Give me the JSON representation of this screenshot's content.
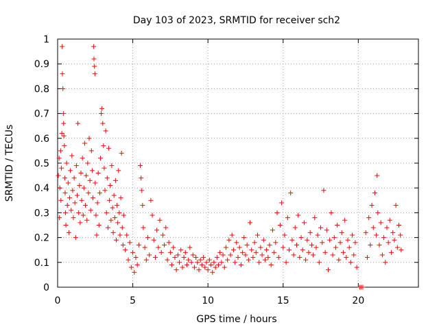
{
  "chart_data": {
    "type": "scatter",
    "title": "Day 103 of 2023, SRMTID for receiver sch2",
    "xlabel": "GPS time / hours",
    "ylabel": "SRMTID / TECUs",
    "xlim": [
      0,
      24
    ],
    "ylim": [
      0,
      1
    ],
    "xticks": [
      0,
      5,
      10,
      15,
      20
    ],
    "xtick_labels": [
      "0",
      "5",
      "10",
      "15",
      "20"
    ],
    "yticks": [
      0,
      0.1,
      0.2,
      0.3,
      0.4,
      0.5,
      0.6,
      0.7,
      0.8,
      0.9,
      1
    ],
    "ytick_labels": [
      "0",
      "0.1",
      "0.2",
      "0.3",
      "0.4",
      "0.5",
      "0.6",
      "0.7",
      "0.8",
      "0.9",
      "1"
    ],
    "grid": true,
    "marker": "+",
    "color": "#ff0000",
    "series": [
      {
        "name": "sch2",
        "points": [
          [
            0.05,
            0.45
          ],
          [
            0.1,
            0.52
          ],
          [
            0.12,
            0.28
          ],
          [
            0.15,
            0.4
          ],
          [
            0.2,
            0.55
          ],
          [
            0.22,
            0.35
          ],
          [
            0.25,
            0.48
          ],
          [
            0.28,
            0.62
          ],
          [
            0.3,
            0.97
          ],
          [
            0.32,
            0.86
          ],
          [
            0.35,
            0.8
          ],
          [
            0.38,
            0.7
          ],
          [
            0.4,
            0.66
          ],
          [
            0.42,
            0.61
          ],
          [
            0.45,
            0.57
          ],
          [
            0.48,
            0.44
          ],
          [
            0.5,
            0.38
          ],
          [
            0.52,
            0.3
          ],
          [
            0.55,
            0.25
          ],
          [
            0.6,
            0.5
          ],
          [
            0.65,
            0.33
          ],
          [
            0.7,
            0.42
          ],
          [
            0.75,
            0.22
          ],
          [
            0.8,
            0.36
          ],
          [
            0.85,
            0.47
          ],
          [
            0.9,
            0.31
          ],
          [
            0.95,
            0.53
          ],
          [
            1.0,
            0.39
          ],
          [
            1.05,
            0.28
          ],
          [
            1.1,
            0.44
          ],
          [
            1.15,
            0.34
          ],
          [
            1.2,
            0.2
          ],
          [
            1.25,
            0.49
          ],
          [
            1.3,
            0.37
          ],
          [
            1.35,
            0.66
          ],
          [
            1.4,
            0.3
          ],
          [
            1.45,
            0.41
          ],
          [
            1.5,
            0.26
          ],
          [
            1.55,
            0.46
          ],
          [
            1.6,
            0.35
          ],
          [
            1.65,
            0.52
          ],
          [
            1.7,
            0.29
          ],
          [
            1.75,
            0.4
          ],
          [
            1.8,
            0.58
          ],
          [
            1.85,
            0.33
          ],
          [
            1.9,
            0.45
          ],
          [
            1.95,
            0.27
          ],
          [
            2.0,
            0.5
          ],
          [
            2.05,
            0.38
          ],
          [
            2.1,
            0.6
          ],
          [
            2.15,
            0.43
          ],
          [
            2.2,
            0.31
          ],
          [
            2.25,
            0.55
          ],
          [
            2.3,
            0.47
          ],
          [
            2.35,
            0.36
          ],
          [
            2.4,
            0.97
          ],
          [
            2.42,
            0.92
          ],
          [
            2.45,
            0.89
          ],
          [
            2.48,
            0.86
          ],
          [
            2.5,
            0.42
          ],
          [
            2.55,
            0.29
          ],
          [
            2.6,
            0.21
          ],
          [
            2.65,
            0.34
          ],
          [
            2.7,
            0.46
          ],
          [
            2.75,
            0.25
          ],
          [
            2.8,
            0.38
          ],
          [
            2.85,
            0.52
          ],
          [
            2.9,
            0.7
          ],
          [
            2.95,
            0.72
          ],
          [
            3.0,
            0.66
          ],
          [
            3.05,
            0.57
          ],
          [
            3.1,
            0.48
          ],
          [
            3.15,
            0.39
          ],
          [
            3.2,
            0.63
          ],
          [
            3.25,
            0.3
          ],
          [
            3.3,
            0.44
          ],
          [
            3.35,
            0.24
          ],
          [
            3.4,
            0.56
          ],
          [
            3.45,
            0.35
          ],
          [
            3.5,
            0.41
          ],
          [
            3.55,
            0.27
          ],
          [
            3.6,
            0.49
          ],
          [
            3.65,
            0.32
          ],
          [
            3.7,
            0.22
          ],
          [
            3.75,
            0.37
          ],
          [
            3.8,
            0.28
          ],
          [
            3.85,
            0.43
          ],
          [
            3.9,
            0.19
          ],
          [
            3.95,
            0.33
          ],
          [
            4.0,
            0.26
          ],
          [
            4.05,
            0.47
          ],
          [
            4.1,
            0.3
          ],
          [
            4.15,
            0.21
          ],
          [
            4.2,
            0.36
          ],
          [
            4.25,
            0.54
          ],
          [
            4.3,
            0.24
          ],
          [
            4.35,
            0.17
          ],
          [
            4.4,
            0.29
          ],
          [
            4.5,
            0.15
          ],
          [
            4.6,
            0.21
          ],
          [
            4.7,
            0.11
          ],
          [
            4.8,
            0.18
          ],
          [
            4.9,
            0.08
          ],
          [
            5.0,
            0.14
          ],
          [
            5.1,
            0.06
          ],
          [
            5.2,
            0.12
          ],
          [
            5.3,
            0.09
          ],
          [
            5.4,
            0.17
          ],
          [
            5.5,
            0.49
          ],
          [
            5.55,
            0.44
          ],
          [
            5.6,
            0.39
          ],
          [
            5.65,
            0.33
          ],
          [
            5.7,
            0.24
          ],
          [
            5.8,
            0.16
          ],
          [
            5.9,
            0.11
          ],
          [
            6.0,
            0.2
          ],
          [
            6.1,
            0.13
          ],
          [
            6.2,
            0.35
          ],
          [
            6.3,
            0.29
          ],
          [
            6.4,
            0.19
          ],
          [
            6.5,
            0.12
          ],
          [
            6.6,
            0.23
          ],
          [
            6.7,
            0.16
          ],
          [
            6.8,
            0.27
          ],
          [
            6.9,
            0.14
          ],
          [
            7.0,
            0.21
          ],
          [
            7.1,
            0.17
          ],
          [
            7.2,
            0.24
          ],
          [
            7.3,
            0.11
          ],
          [
            7.4,
            0.18
          ],
          [
            7.5,
            0.14
          ],
          [
            7.6,
            0.09
          ],
          [
            7.7,
            0.16
          ],
          [
            7.8,
            0.12
          ],
          [
            7.9,
            0.07
          ],
          [
            8.0,
            0.13
          ],
          [
            8.1,
            0.1
          ],
          [
            8.2,
            0.15
          ],
          [
            8.3,
            0.08
          ],
          [
            8.4,
            0.12
          ],
          [
            8.5,
            0.14
          ],
          [
            8.6,
            0.09
          ],
          [
            8.7,
            0.11
          ],
          [
            8.8,
            0.16
          ],
          [
            8.9,
            0.1
          ],
          [
            9.0,
            0.13
          ],
          [
            9.1,
            0.08
          ],
          [
            9.2,
            0.12
          ],
          [
            9.3,
            0.1
          ],
          [
            9.4,
            0.07
          ],
          [
            9.5,
            0.11
          ],
          [
            9.6,
            0.09
          ],
          [
            9.7,
            0.12
          ],
          [
            9.8,
            0.08
          ],
          [
            9.9,
            0.1
          ],
          [
            10.0,
            0.07
          ],
          [
            10.1,
            0.11
          ],
          [
            10.2,
            0.09
          ],
          [
            10.3,
            0.06
          ],
          [
            10.4,
            0.1
          ],
          [
            10.5,
            0.08
          ],
          [
            10.6,
            0.12
          ],
          [
            10.7,
            0.09
          ],
          [
            10.8,
            0.14
          ],
          [
            10.9,
            0.1
          ],
          [
            11.0,
            0.13
          ],
          [
            11.1,
            0.08
          ],
          [
            11.2,
            0.16
          ],
          [
            11.3,
            0.11
          ],
          [
            11.4,
            0.19
          ],
          [
            11.5,
            0.13
          ],
          [
            11.6,
            0.21
          ],
          [
            11.7,
            0.15
          ],
          [
            11.8,
            0.1
          ],
          [
            11.9,
            0.18
          ],
          [
            12.0,
            0.12
          ],
          [
            12.1,
            0.16
          ],
          [
            12.2,
            0.09
          ],
          [
            12.3,
            0.14
          ],
          [
            12.4,
            0.2
          ],
          [
            12.5,
            0.13
          ],
          [
            12.6,
            0.17
          ],
          [
            12.7,
            0.11
          ],
          [
            12.8,
            0.26
          ],
          [
            12.9,
            0.15
          ],
          [
            13.0,
            0.12
          ],
          [
            13.1,
            0.18
          ],
          [
            13.2,
            0.14
          ],
          [
            13.3,
            0.21
          ],
          [
            13.4,
            0.1
          ],
          [
            13.5,
            0.16
          ],
          [
            13.6,
            0.13
          ],
          [
            13.7,
            0.19
          ],
          [
            13.8,
            0.11
          ],
          [
            13.9,
            0.15
          ],
          [
            14.0,
            0.12
          ],
          [
            14.1,
            0.17
          ],
          [
            14.2,
            0.09
          ],
          [
            14.3,
            0.23
          ],
          [
            14.4,
            0.14
          ],
          [
            14.5,
            0.18
          ],
          [
            14.6,
            0.3
          ],
          [
            14.7,
            0.12
          ],
          [
            14.8,
            0.25
          ],
          [
            14.9,
            0.34
          ],
          [
            15.0,
            0.16
          ],
          [
            15.1,
            0.21
          ],
          [
            15.2,
            0.1
          ],
          [
            15.3,
            0.28
          ],
          [
            15.4,
            0.15
          ],
          [
            15.5,
            0.38
          ],
          [
            15.6,
            0.19
          ],
          [
            15.7,
            0.13
          ],
          [
            15.8,
            0.24
          ],
          [
            15.9,
            0.17
          ],
          [
            16.0,
            0.29
          ],
          [
            16.1,
            0.12
          ],
          [
            16.2,
            0.2
          ],
          [
            16.3,
            0.15
          ],
          [
            16.4,
            0.26
          ],
          [
            16.5,
            0.11
          ],
          [
            16.6,
            0.19
          ],
          [
            16.7,
            0.14
          ],
          [
            16.8,
            0.22
          ],
          [
            16.9,
            0.17
          ],
          [
            17.0,
            0.13
          ],
          [
            17.1,
            0.28
          ],
          [
            17.2,
            0.16
          ],
          [
            17.3,
            0.21
          ],
          [
            17.4,
            0.1
          ],
          [
            17.5,
            0.24
          ],
          [
            17.6,
            0.18
          ],
          [
            17.7,
            0.39
          ],
          [
            17.8,
            0.14
          ],
          [
            17.9,
            0.23
          ],
          [
            18.0,
            0.07
          ],
          [
            18.1,
            0.19
          ],
          [
            18.2,
            0.3
          ],
          [
            18.3,
            0.13
          ],
          [
            18.4,
            0.2
          ],
          [
            18.5,
            0.16
          ],
          [
            18.6,
            0.25
          ],
          [
            18.7,
            0.11
          ],
          [
            18.8,
            0.18
          ],
          [
            18.9,
            0.22
          ],
          [
            19.0,
            0.14
          ],
          [
            19.1,
            0.27
          ],
          [
            19.2,
            0.12
          ],
          [
            19.3,
            0.19
          ],
          [
            19.4,
            0.16
          ],
          [
            19.5,
            0.1
          ],
          [
            19.6,
            0.21
          ],
          [
            19.7,
            0.13
          ],
          [
            19.8,
            0.18
          ],
          [
            19.9,
            0.08
          ],
          [
            20.1,
            0.0
          ],
          [
            20.2,
            0.0
          ],
          [
            20.3,
            0.0
          ],
          [
            20.5,
            0.22
          ],
          [
            20.6,
            0.12
          ],
          [
            20.7,
            0.28
          ],
          [
            20.8,
            0.17
          ],
          [
            20.9,
            0.33
          ],
          [
            21.0,
            0.24
          ],
          [
            21.1,
            0.38
          ],
          [
            21.2,
            0.21
          ],
          [
            21.25,
            0.45
          ],
          [
            21.3,
            0.3
          ],
          [
            21.4,
            0.17
          ],
          [
            21.5,
            0.26
          ],
          [
            21.6,
            0.13
          ],
          [
            21.7,
            0.2
          ],
          [
            21.8,
            0.1
          ],
          [
            21.9,
            0.24
          ],
          [
            22.0,
            0.18
          ],
          [
            22.1,
            0.27
          ],
          [
            22.2,
            0.14
          ],
          [
            22.3,
            0.22
          ],
          [
            22.4,
            0.19
          ],
          [
            22.5,
            0.33
          ],
          [
            22.6,
            0.16
          ],
          [
            22.7,
            0.25
          ],
          [
            22.8,
            0.21
          ],
          [
            22.85,
            0.15
          ]
        ]
      }
    ]
  }
}
